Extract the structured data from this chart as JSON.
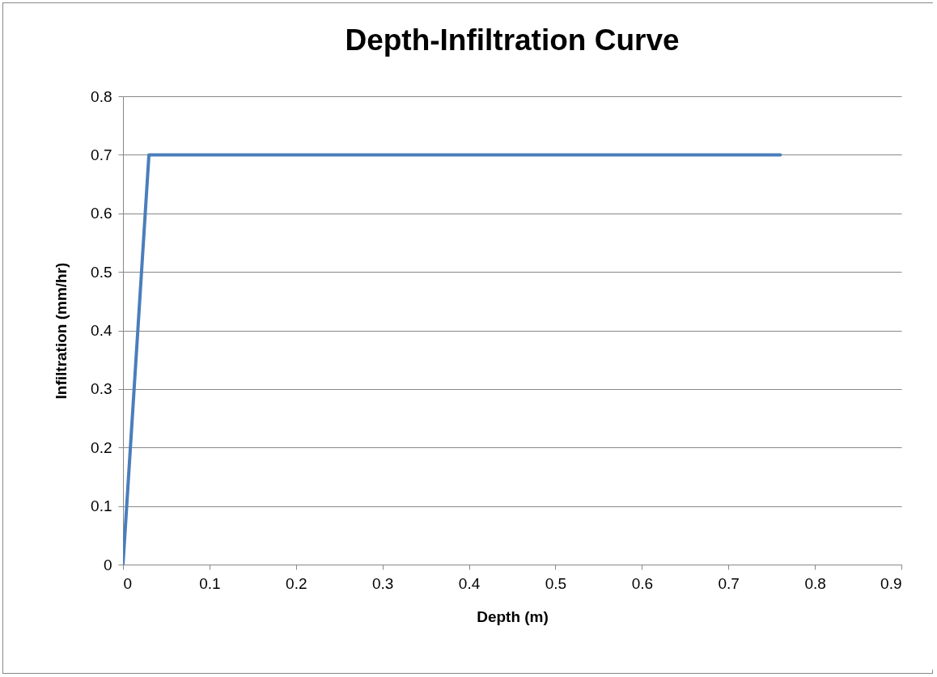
{
  "chart_data": {
    "type": "line",
    "title": "Depth-Infiltration Curve",
    "xlabel": "Depth (m)",
    "ylabel": "Infiltration (mm/hr)",
    "series": [
      {
        "color": "#4a7ebb",
        "x": [
          0,
          0.03,
          0.76
        ],
        "values": [
          0,
          0.7,
          0.7
        ]
      }
    ],
    "xlim": [
      0,
      0.9
    ],
    "xticks": [
      0,
      0.1,
      0.2,
      0.3,
      0.4,
      0.5,
      0.6,
      0.7,
      0.8,
      0.9
    ],
    "ylim": [
      0,
      0.8
    ],
    "yticks": [
      0,
      0.1,
      0.2,
      0.3,
      0.4,
      0.5,
      0.6,
      0.7,
      0.8
    ],
    "grid": "y",
    "marker": "none",
    "line_style": "solid"
  }
}
